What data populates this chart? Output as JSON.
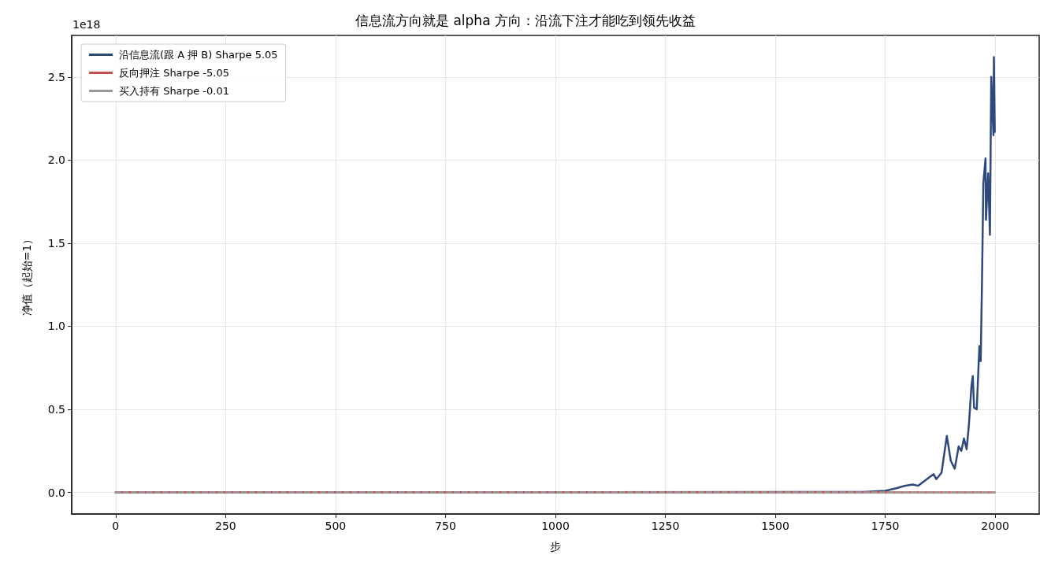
{
  "chart_data": {
    "type": "line",
    "title": "信息流方向就是 alpha 方向：沿流下注才能吃到领先收益",
    "xlabel": "步",
    "ylabel": "净值（起始=1）",
    "annotations": [
      "1e18"
    ],
    "series": [
      {
        "name": "沿信息流(跟 A 押 B) Sharpe 5.05",
        "color": "#2e4a7d",
        "line_style": "solid",
        "x": [
          0,
          1700,
          1750,
          1775,
          1794,
          1812,
          1825,
          1848,
          1860,
          1866,
          1878,
          1890,
          1899,
          1908,
          1917,
          1923,
          1929,
          1935,
          1940,
          1946,
          1949,
          1952,
          1958,
          1964,
          1967,
          1970,
          1973,
          1978,
          1979,
          1984,
          1988,
          1991,
          1996,
          1997,
          1999
        ],
        "values": [
          0,
          0.003,
          0.01,
          0.025,
          0.039,
          0.048,
          0.04,
          0.087,
          0.11,
          0.08,
          0.119,
          0.34,
          0.19,
          0.143,
          0.277,
          0.25,
          0.325,
          0.26,
          0.4,
          0.64,
          0.7,
          0.51,
          0.5,
          0.88,
          0.79,
          1.275,
          1.86,
          2.01,
          1.64,
          1.92,
          1.55,
          2.5,
          2.15,
          2.62,
          2.17
        ]
      },
      {
        "name": "反向押注 Sharpe -5.05",
        "color": "#c44e52",
        "line_style": "solid",
        "x": [
          0,
          1999
        ],
        "values": [
          0,
          0
        ]
      },
      {
        "name": "买入持有 Sharpe -0.01",
        "color": "#999999",
        "line_style": "dashed",
        "x": [
          0,
          1999
        ],
        "values": [
          0,
          0
        ]
      }
    ],
    "xlim": [
      -100,
      2100
    ],
    "xticks": [
      0,
      250,
      500,
      750,
      1000,
      1250,
      1500,
      1750,
      2000
    ],
    "ylim": [
      -0.13,
      2.75
    ],
    "yticks": [
      {
        "value": 0,
        "label": "0.0"
      },
      {
        "value": 0.5,
        "label": "0.5"
      },
      {
        "value": 1,
        "label": "1.0"
      },
      {
        "value": 1.5,
        "label": "1.5"
      },
      {
        "value": 2,
        "label": "2.0"
      },
      {
        "value": 2.5,
        "label": "2.5"
      }
    ],
    "grid": true,
    "legend": "top left",
    "marker": "none"
  }
}
